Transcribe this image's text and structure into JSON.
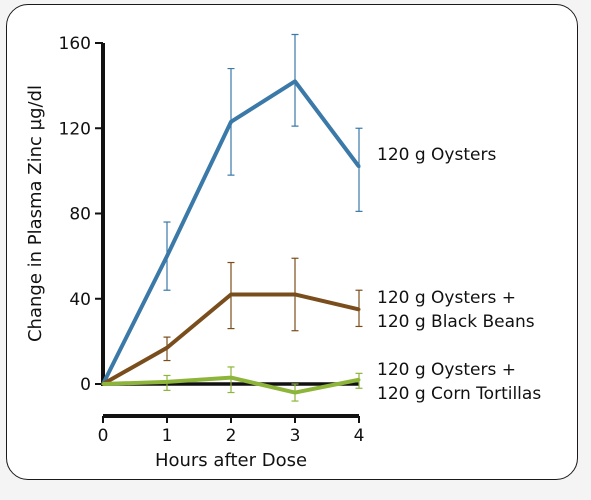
{
  "chart_data": {
    "type": "line",
    "xlabel": "Hours after Dose",
    "ylabel": "Change in Plasma Zinc µg/dl",
    "x": [
      0,
      1,
      2,
      3,
      4
    ],
    "xlim": [
      0,
      4
    ],
    "ylim": [
      0,
      160
    ],
    "yticks": [
      0,
      40,
      80,
      120,
      160
    ],
    "xticks": [
      0,
      1,
      2,
      3,
      4
    ],
    "grid": false,
    "legend": "direct labels at line ends (right)",
    "series": [
      {
        "name": "120 g Oysters",
        "label_lines": [
          "120 g Oysters"
        ],
        "color": "#3a79a8",
        "values": [
          0,
          60,
          123,
          142,
          102
        ],
        "err_lo": [
          0,
          44,
          98,
          121,
          81
        ],
        "err_hi": [
          0,
          76,
          148,
          164,
          120
        ]
      },
      {
        "name": "120 g Oysters + 120 g Black Beans",
        "label_lines": [
          "120 g Oysters +",
          "120 g Black Beans"
        ],
        "color": "#7a4e1c",
        "values": [
          0,
          17,
          42,
          42,
          35
        ],
        "err_lo": [
          0,
          11,
          26,
          25,
          27
        ],
        "err_hi": [
          0,
          22,
          57,
          59,
          44
        ]
      },
      {
        "name": "120 g Oysters + 120 g Corn Tortillas",
        "label_lines": [
          "120 g Oysters +",
          "120 g Corn Tortillas"
        ],
        "color": "#8db53a",
        "values": [
          0,
          1,
          3,
          -4,
          2
        ],
        "err_lo": [
          0,
          -3,
          -4,
          -8,
          -2
        ],
        "err_hi": [
          0,
          4,
          8,
          0,
          5
        ]
      }
    ]
  }
}
